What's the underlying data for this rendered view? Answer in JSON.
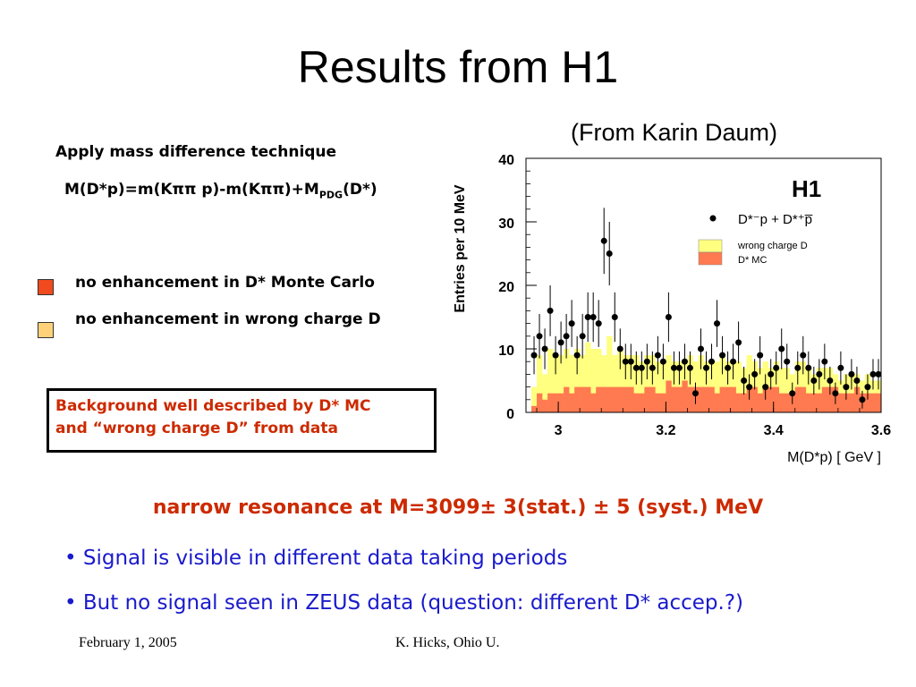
{
  "slide": {
    "title": "Results from H1",
    "credit": "(From Karin Daum)",
    "apply": "Apply mass difference technique",
    "formula": {
      "a": "M(D*p)=m(Kππ p)-m(Kππ)+M",
      "sub": "PDG",
      "b": "(D*)"
    },
    "bullets": [
      {
        "text": "no enhancement in D* Monte Carlo",
        "color": "#f04a1e"
      },
      {
        "text": "no enhancement in wrong charge D",
        "color": "#ffd27a"
      }
    ],
    "box": {
      "line1": "Background well described by D* MC",
      "line2": "and “wrong charge D” from data"
    },
    "resonance": "narrow resonance at M=3099± 3(stat.) ± 5 (syst.) MeV",
    "points": [
      "• Signal is visible in different data taking periods",
      "• But no signal seen in ZEUS data (question: different D* accep.?)"
    ],
    "footer": {
      "date": "February 1, 2005",
      "author": "K. Hicks, Ohio U."
    }
  },
  "chart_data": {
    "type": "bar",
    "experiment_label": "H1",
    "ylabel": "Entries per 10 MeV",
    "xlabel": "M(D*p) [ GeV ]",
    "xlim": [
      2.94,
      3.6
    ],
    "ylim": [
      0,
      40
    ],
    "x_ticks": [
      "3",
      "3.2",
      "3.4",
      "3.6"
    ],
    "x_tick_values": [
      3.0,
      3.2,
      3.4,
      3.6
    ],
    "y_ticks": [
      "0",
      "10",
      "20",
      "30",
      "40"
    ],
    "y_tick_values": [
      0,
      10,
      20,
      30,
      40
    ],
    "bin_width": 0.01,
    "bin_starts": [
      2.95,
      2.96,
      2.97,
      2.98,
      2.99,
      3.0,
      3.01,
      3.02,
      3.03,
      3.04,
      3.05,
      3.06,
      3.07,
      3.08,
      3.09,
      3.1,
      3.11,
      3.12,
      3.13,
      3.14,
      3.15,
      3.16,
      3.17,
      3.18,
      3.19,
      3.2,
      3.21,
      3.22,
      3.23,
      3.24,
      3.25,
      3.26,
      3.27,
      3.28,
      3.29,
      3.3,
      3.31,
      3.32,
      3.33,
      3.34,
      3.35,
      3.36,
      3.37,
      3.38,
      3.39,
      3.4,
      3.41,
      3.42,
      3.43,
      3.44,
      3.45,
      3.46,
      3.47,
      3.48,
      3.49,
      3.5,
      3.51,
      3.52,
      3.53,
      3.54,
      3.55,
      3.56,
      3.57,
      3.58,
      3.59
    ],
    "series": [
      {
        "name": "wrong charge D",
        "color": "#ffff80",
        "values": [
          4,
          9,
          6,
          10,
          9,
          9,
          10,
          9,
          10,
          9,
          11,
          10,
          10,
          9,
          12,
          9,
          10,
          9,
          9,
          9,
          8,
          9,
          9,
          8,
          8,
          9,
          8,
          8,
          8,
          9,
          8,
          9,
          8,
          8,
          8,
          9,
          8,
          8,
          8,
          7,
          9,
          8,
          7,
          8,
          7,
          8,
          7,
          7,
          6,
          8,
          8,
          7,
          6,
          7,
          7,
          7,
          6,
          5,
          6,
          6,
          6,
          5,
          6,
          5,
          5
        ]
      },
      {
        "name": "D* MC",
        "color": "#ff7a50",
        "values": [
          1,
          3,
          2,
          3,
          3,
          3,
          4,
          3,
          4,
          4,
          4,
          3,
          4,
          4,
          4,
          4,
          4,
          4,
          4,
          3,
          3,
          4,
          4,
          3,
          3,
          5,
          4,
          4,
          5,
          4,
          4,
          4,
          4,
          4,
          3,
          4,
          4,
          4,
          3,
          3,
          4,
          4,
          3,
          4,
          4,
          4,
          3,
          3,
          3,
          4,
          4,
          3,
          3,
          3,
          4,
          4,
          4,
          3,
          3,
          3,
          4,
          3,
          3,
          3,
          3
        ]
      }
    ],
    "data_points": {
      "name": "D*⁻p + D*⁺p̅",
      "x": [
        2.955,
        2.965,
        2.975,
        2.985,
        2.995,
        3.005,
        3.015,
        3.025,
        3.035,
        3.045,
        3.055,
        3.065,
        3.075,
        3.085,
        3.095,
        3.105,
        3.115,
        3.125,
        3.135,
        3.145,
        3.155,
        3.165,
        3.175,
        3.185,
        3.195,
        3.205,
        3.215,
        3.225,
        3.235,
        3.245,
        3.255,
        3.265,
        3.275,
        3.285,
        3.295,
        3.305,
        3.315,
        3.325,
        3.335,
        3.345,
        3.355,
        3.365,
        3.375,
        3.385,
        3.395,
        3.405,
        3.415,
        3.425,
        3.435,
        3.445,
        3.455,
        3.465,
        3.475,
        3.485,
        3.495,
        3.505,
        3.515,
        3.525,
        3.535,
        3.545,
        3.555,
        3.565,
        3.575,
        3.585,
        3.595
      ],
      "y": [
        9,
        12,
        10,
        16,
        9,
        11,
        12,
        14,
        9,
        12,
        15,
        15,
        14,
        27,
        25,
        15,
        10,
        8,
        8,
        7,
        7,
        8,
        7,
        9,
        8,
        15,
        7,
        7,
        8,
        7,
        3,
        10,
        7,
        8,
        14,
        9,
        7,
        8,
        11,
        5,
        4,
        6,
        9,
        4,
        6,
        7,
        10,
        8,
        3,
        7,
        9,
        7,
        5,
        6,
        8,
        5,
        3,
        7,
        4,
        6,
        5,
        2,
        4,
        6,
        6
      ],
      "errors": [
        3.0,
        3.5,
        3.2,
        4.0,
        3.0,
        3.3,
        3.5,
        3.7,
        3.0,
        3.5,
        3.9,
        3.9,
        3.7,
        5.2,
        5.0,
        3.9,
        3.2,
        2.8,
        2.8,
        2.6,
        2.6,
        2.8,
        2.6,
        3.0,
        2.8,
        3.9,
        2.6,
        2.6,
        2.8,
        2.6,
        1.7,
        3.2,
        2.6,
        2.8,
        3.7,
        3.0,
        2.6,
        2.8,
        3.3,
        2.2,
        2.0,
        2.4,
        3.0,
        2.0,
        2.4,
        2.6,
        3.2,
        2.8,
        1.7,
        2.6,
        3.0,
        2.6,
        2.2,
        2.4,
        2.8,
        2.2,
        1.7,
        2.6,
        2.0,
        2.4,
        2.2,
        1.4,
        2.0,
        2.4,
        2.4
      ]
    },
    "legend_placement": "top-right"
  }
}
